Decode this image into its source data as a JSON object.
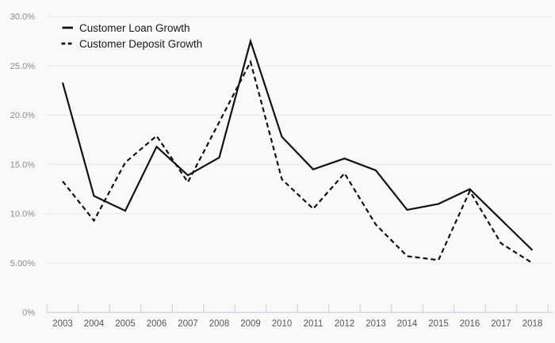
{
  "chart_data": {
    "type": "line",
    "title": "",
    "x": [
      "2003",
      "2004",
      "2005",
      "2006",
      "2007",
      "2008",
      "2009",
      "2010",
      "2011",
      "2012",
      "2013",
      "2014",
      "2015",
      "2016",
      "2017",
      "2018"
    ],
    "series": [
      {
        "name": "Customer Loan Growth",
        "style": "solid",
        "values": [
          23.3,
          11.8,
          10.3,
          16.8,
          13.9,
          15.7,
          27.5,
          17.8,
          14.5,
          15.6,
          14.4,
          10.4,
          11.0,
          12.5,
          9.4,
          6.3
        ]
      },
      {
        "name": "Customer Deposit Growth",
        "style": "dashed",
        "values": [
          13.3,
          9.3,
          15.2,
          17.9,
          13.2,
          19.3,
          25.4,
          13.5,
          10.5,
          14.1,
          8.9,
          5.7,
          5.3,
          12.3,
          7.0,
          5.0
        ]
      }
    ],
    "ylim": [
      0,
      30
    ],
    "yticks": [
      {
        "v": 30,
        "label": "30.0%"
      },
      {
        "v": 25,
        "label": "25.0%"
      },
      {
        "v": 20,
        "label": "20.0%"
      },
      {
        "v": 15,
        "label": "15.0%"
      },
      {
        "v": 10,
        "label": "10.0%"
      },
      {
        "v": 5,
        "label": "5.00%"
      },
      {
        "v": 0,
        "label": "0%"
      }
    ],
    "grid": true,
    "legend_position": "top-left",
    "colors": {
      "line": "#111111",
      "grid": "#e8e8e8",
      "axis": "#c3cdde",
      "y_label": "#8b8b8b",
      "x_label": "#55575c",
      "legend_text": "#17181a",
      "background": "#f9f9fa"
    }
  }
}
